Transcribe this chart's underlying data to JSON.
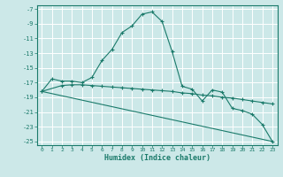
{
  "title": "",
  "xlabel": "Humidex (Indice chaleur)",
  "bg_color": "#cce8e8",
  "grid_color": "#ffffff",
  "line_color": "#1a7a6a",
  "xlim": [
    -0.5,
    23.5
  ],
  "ylim": [
    -25.5,
    -6.5
  ],
  "xticks": [
    0,
    1,
    2,
    3,
    4,
    5,
    6,
    7,
    8,
    9,
    10,
    11,
    12,
    13,
    14,
    15,
    16,
    17,
    18,
    19,
    20,
    21,
    22,
    23
  ],
  "yticks": [
    -7,
    -9,
    -11,
    -13,
    -15,
    -17,
    -19,
    -21,
    -23,
    -25
  ],
  "line1_x": [
    0,
    1,
    2,
    3,
    4,
    5,
    6,
    7,
    8,
    9,
    10,
    11,
    12,
    13,
    14,
    15,
    16,
    17,
    18,
    19,
    20,
    21,
    22,
    23
  ],
  "line1_y": [
    -18.2,
    -16.5,
    -16.8,
    -16.8,
    -17.0,
    -16.3,
    -14.0,
    -12.5,
    -10.2,
    -9.3,
    -7.7,
    -7.4,
    -8.7,
    -12.8,
    -17.5,
    -17.9,
    -19.5,
    -18.0,
    -18.3,
    -20.5,
    -20.8,
    -21.3,
    -22.7,
    -25.0
  ],
  "line2_x": [
    0,
    2,
    3,
    4,
    5,
    6,
    7,
    8,
    9,
    10,
    11,
    12,
    13,
    14,
    15,
    16,
    17,
    18,
    19,
    20,
    21,
    22,
    23
  ],
  "line2_y": [
    -18.2,
    -17.4,
    -17.3,
    -17.3,
    -17.4,
    -17.5,
    -17.6,
    -17.7,
    -17.8,
    -17.9,
    -18.0,
    -18.1,
    -18.2,
    -18.4,
    -18.5,
    -18.7,
    -18.8,
    -19.0,
    -19.1,
    -19.3,
    -19.5,
    -19.7,
    -19.9
  ],
  "line3_x": [
    0,
    23
  ],
  "line3_y": [
    -18.2,
    -25.0
  ]
}
